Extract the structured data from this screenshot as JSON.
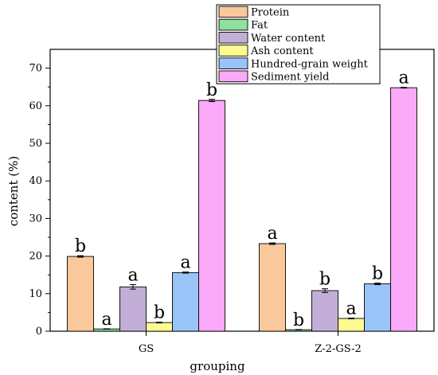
{
  "chart_data": {
    "type": "bar",
    "categories": [
      "GS",
      "Z-2-GS-2"
    ],
    "xlabel": "grouping",
    "ylabel": "content  (%)",
    "ylim": [
      0,
      75
    ],
    "yticks": [
      0,
      10,
      20,
      30,
      40,
      50,
      60,
      70
    ],
    "legend_position": "top-center",
    "series": [
      {
        "name": "Protein",
        "color": "#f9c89b",
        "values": [
          19.9,
          23.3
        ],
        "errors": [
          0.2,
          0.2
        ],
        "significance": [
          "b",
          "a"
        ]
      },
      {
        "name": "Fat",
        "color": "#8fdf9f",
        "values": [
          0.6,
          0.4
        ],
        "errors": [
          0.05,
          0.05
        ],
        "significance": [
          "a",
          "b"
        ]
      },
      {
        "name": "Water content",
        "color": "#c2aed6",
        "values": [
          11.8,
          10.8
        ],
        "errors": [
          0.6,
          0.5
        ],
        "significance": [
          "a",
          "b"
        ]
      },
      {
        "name": "Ash content",
        "color": "#fdfb8f",
        "values": [
          2.3,
          3.4
        ],
        "errors": [
          0.1,
          0.1
        ],
        "significance": [
          "b",
          "a"
        ]
      },
      {
        "name": "Hundred-grain weight",
        "color": "#98c4f8",
        "values": [
          15.6,
          12.6
        ],
        "errors": [
          0.15,
          0.2
        ],
        "significance": [
          "a",
          "b"
        ]
      },
      {
        "name": "Sediment yield",
        "color": "#fba9f9",
        "values": [
          61.4,
          64.8
        ],
        "errors": [
          0.3,
          0.1
        ],
        "significance": [
          "b",
          "a"
        ]
      }
    ]
  }
}
